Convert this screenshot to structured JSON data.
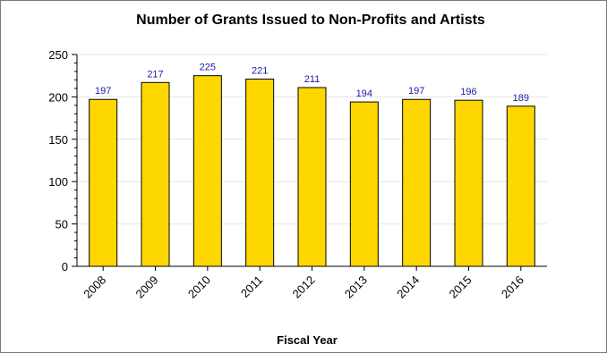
{
  "chart_data": {
    "type": "bar",
    "title": "Number of Grants Issued to Non-Profits and Artists",
    "xlabel": "Fiscal Year",
    "ylabel": "",
    "categories": [
      "2008",
      "2009",
      "2010",
      "2011",
      "2012",
      "2013",
      "2014",
      "2015",
      "2016"
    ],
    "values": [
      197,
      217,
      225,
      221,
      211,
      194,
      197,
      196,
      189
    ],
    "ylim": [
      0,
      250
    ],
    "yticks": [
      0,
      50,
      100,
      150,
      200,
      250
    ],
    "grid": true,
    "data_labels": true,
    "legend": "none",
    "colors": {
      "bar_fill": "#FFD700",
      "bar_stroke": "#000000",
      "data_label": "#1a1aa6",
      "grid": "#e6e6e6",
      "axis": "#000000"
    }
  }
}
